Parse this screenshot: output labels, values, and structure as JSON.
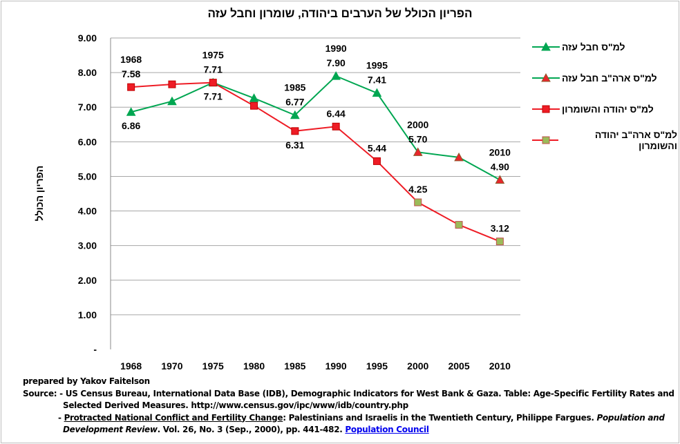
{
  "chart_data": {
    "type": "line",
    "title": "הפריון הכולל של הערבים ביהודה, שומרון וחבל עזה",
    "ylabel": "הפריון הכולל",
    "xlabel": "",
    "categories": [
      "1968",
      "1970",
      "1975",
      "1980",
      "1985",
      "1990",
      "1995",
      "2000",
      "2005",
      "2010"
    ],
    "ylim": [
      0,
      9
    ],
    "yticks": [
      "-",
      "1.00",
      "2.00",
      "3.00",
      "4.00",
      "5.00",
      "6.00",
      "7.00",
      "8.00",
      "9.00"
    ],
    "grid": "horizontal",
    "legend_position": "right",
    "series": [
      {
        "name": "למ\"ס חבל עזה",
        "values": [
          6.86,
          7.17,
          7.71,
          7.26,
          6.77,
          7.9,
          7.41,
          null,
          null,
          null
        ],
        "line_color": "#00a651",
        "marker": "triangle",
        "marker_fill": "#00a651",
        "marker_stroke": "#00a651"
      },
      {
        "name": "למ\"ס ארה\"ב חבל עזה",
        "values": [
          null,
          null,
          null,
          null,
          null,
          null,
          null,
          5.7,
          5.55,
          4.9
        ],
        "line_color": "#00a651",
        "marker": "triangle",
        "marker_fill": "#e8262c",
        "marker_stroke": "#8b5a2b"
      },
      {
        "name": "למ\"ס יהודה והשומרון",
        "values": [
          7.58,
          7.66,
          7.71,
          7.04,
          6.31,
          6.44,
          5.44,
          null,
          null,
          null
        ],
        "line_color": "#ee1c25",
        "marker": "square",
        "marker_fill": "#ee1c25",
        "marker_stroke": "#c00000"
      },
      {
        "name": "למ\"ס ארה\"ב יהודה והשומרון",
        "values": [
          null,
          null,
          null,
          null,
          null,
          null,
          null,
          4.25,
          3.6,
          3.12
        ],
        "line_color": "#ee1c25",
        "marker": "square",
        "marker_fill": "#9bbb59",
        "marker_stroke": "#c0504d"
      }
    ],
    "annotations": [
      {
        "category": "1968",
        "lines": [
          "1968",
          "7.58"
        ],
        "value": 7.58,
        "place": "above"
      },
      {
        "category": "1968",
        "lines": [
          "6.86"
        ],
        "value": 6.86,
        "place": "below"
      },
      {
        "category": "1975",
        "lines": [
          "1975",
          "7.71"
        ],
        "value": 7.71,
        "place": "above"
      },
      {
        "category": "1975",
        "lines": [
          "7.71"
        ],
        "value": 7.71,
        "place": "below"
      },
      {
        "category": "1985",
        "lines": [
          "1985",
          "6.77"
        ],
        "value": 6.77,
        "place": "above"
      },
      {
        "category": "1985",
        "lines": [
          "6.31"
        ],
        "value": 6.31,
        "place": "below"
      },
      {
        "category": "1990",
        "lines": [
          "1990",
          "7.90"
        ],
        "value": 7.9,
        "place": "above"
      },
      {
        "category": "1990",
        "lines": [
          "6.44"
        ],
        "value": 6.44,
        "place": "above"
      },
      {
        "category": "1995",
        "lines": [
          "1995",
          "7.41"
        ],
        "value": 7.41,
        "place": "above"
      },
      {
        "category": "1995",
        "lines": [
          "5.44"
        ],
        "value": 5.44,
        "place": "above"
      },
      {
        "category": "2000",
        "lines": [
          "2000",
          "5.70"
        ],
        "value": 5.7,
        "place": "above"
      },
      {
        "category": "2000",
        "lines": [
          "4.25"
        ],
        "value": 4.25,
        "place": "above"
      },
      {
        "category": "2010",
        "lines": [
          "2010",
          "4.90"
        ],
        "value": 4.9,
        "place": "above"
      },
      {
        "category": "2010",
        "lines": [
          "3.12"
        ],
        "value": 3.12,
        "place": "above"
      }
    ]
  },
  "notes": {
    "prepared": "prepared by Yakov Faitelson",
    "source_prefix": "Source: - ",
    "source1a": "US Census Bureau, International Data Base (IDB), Demographic Indicators for West Bank & Gaza. Table: Age-Specific Fertility Rates and",
    "source1b": "Selected Derived Measures. http://www.census.gov/ipc/www/idb/country.php",
    "source2_dash": "- ",
    "source2_title": "Protracted National Conflict and Fertility Change",
    "source2_rest": ": Palestinians and Israelis in the Twentieth Century, Philippe Fargues. ",
    "source2_italic1": "Population and",
    "source2_italic2": "Development Review",
    "source2_tail": ". Vol. 26, No. 3 (Sep., 2000), pp. 441-482.  ",
    "source2_link": "Population Council"
  }
}
